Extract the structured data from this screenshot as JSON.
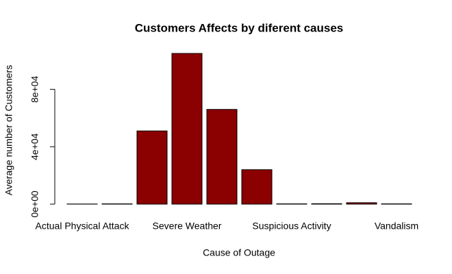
{
  "chart_data": {
    "type": "bar",
    "title": "Customers Affects by diferent causes",
    "x_label": "Cause of Outage",
    "y_label": "Average number of Customers",
    "categories": [
      "Actual Physical Attack",
      null,
      null,
      "Severe Weather",
      null,
      null,
      "Suspicious Activity",
      null,
      null,
      "Vandalism"
    ],
    "values": [
      100,
      200,
      51000,
      105000,
      66000,
      24000,
      200,
      300,
      1000,
      200
    ],
    "color": "#8b0000",
    "ylim": [
      0,
      105000
    ],
    "yticks": [
      {
        "value": 0,
        "label": "0e+00"
      },
      {
        "value": 40000,
        "label": "4e+04"
      },
      {
        "value": 80000,
        "label": "8e+04"
      }
    ],
    "grid": false
  }
}
